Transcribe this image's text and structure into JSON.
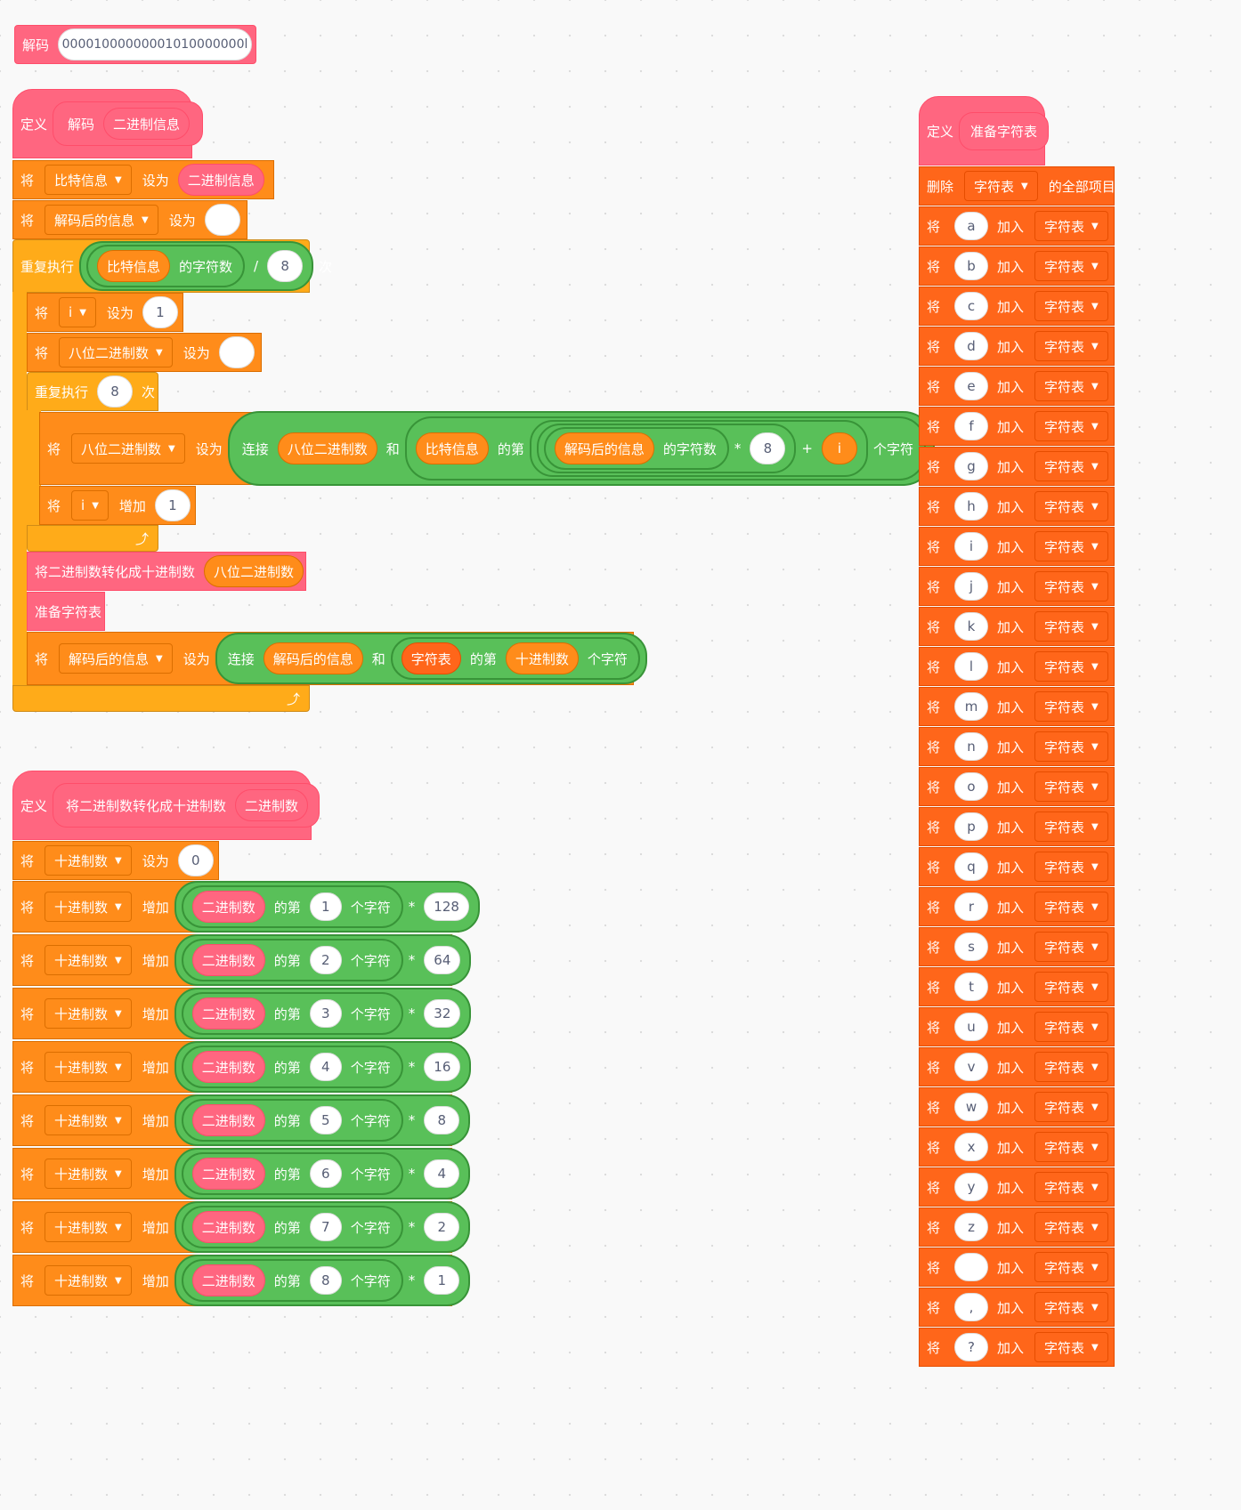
{
  "decode_call": {
    "label": "解码",
    "arg": "00001000000001010000000l"
  },
  "def_decode": {
    "define": "定义",
    "name": "解码",
    "param": "二进制信息"
  },
  "kw": {
    "set": "将",
    "to": "设为",
    "add": "增加",
    "repeat": "重复执行",
    "times": "次",
    "join": "连接",
    "and": "和",
    "of_nth": "的第",
    "char_count": "的字符数",
    "chars": "个字符",
    "add_to": "加入",
    "div": "/",
    "mul": "*",
    "plus": "+"
  },
  "vars": {
    "bit_info": "比特信息",
    "decoded": "解码后的信息",
    "i": "i",
    "eight_bit": "八位二进制数",
    "decimal": "十进制数",
    "binary": "二进制数",
    "char_table": "字符表"
  },
  "nums": {
    "eight": "8",
    "one": "1",
    "zero": "0"
  },
  "convert_call": {
    "label": "将二进制数转化成十进制数",
    "arg": "八位二进制数"
  },
  "prepare_call": "准备字符表",
  "def_convert": {
    "define": "定义",
    "name": "将二进制数转化成十进制数",
    "param": "二进制数"
  },
  "convert_rows": [
    {
      "idx": "1",
      "weight": "128"
    },
    {
      "idx": "2",
      "weight": "64"
    },
    {
      "idx": "3",
      "weight": "32"
    },
    {
      "idx": "4",
      "weight": "16"
    },
    {
      "idx": "5",
      "weight": "8"
    },
    {
      "idx": "6",
      "weight": "4"
    },
    {
      "idx": "7",
      "weight": "2"
    },
    {
      "idx": "8",
      "weight": "1"
    }
  ],
  "def_prepare": {
    "define": "定义",
    "name": "准备字符表",
    "delete": "删除",
    "delete_all": "的全部项目"
  },
  "char_items": [
    "a",
    "b",
    "c",
    "d",
    "e",
    "f",
    "g",
    "h",
    "i",
    "j",
    "k",
    "l",
    "m",
    "n",
    "o",
    "p",
    "q",
    "r",
    "s",
    "t",
    "u",
    "v",
    "w",
    "x",
    "y",
    "z",
    " ",
    ",",
    "?"
  ]
}
